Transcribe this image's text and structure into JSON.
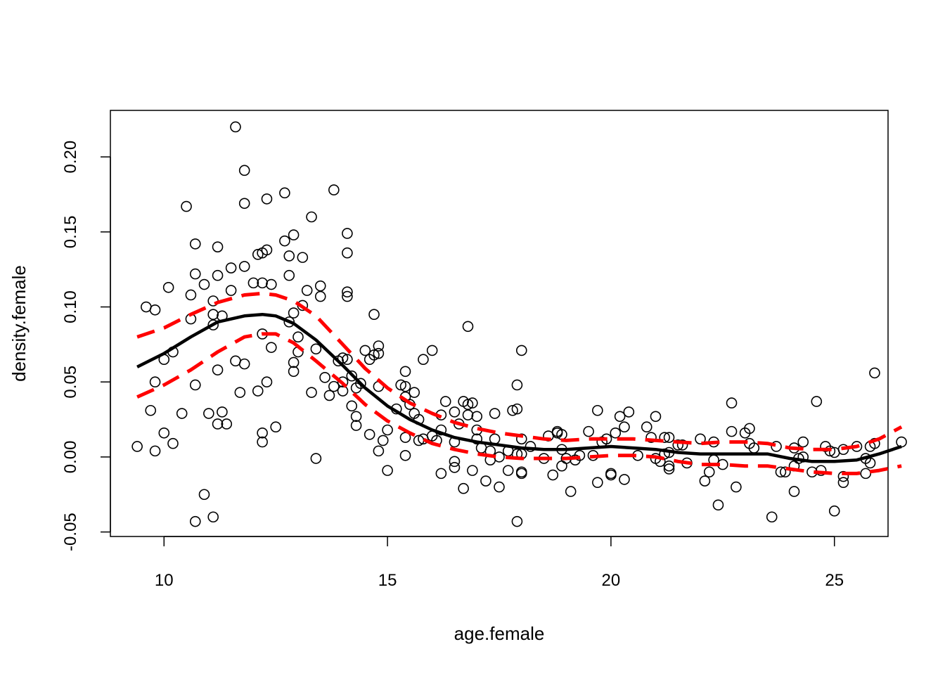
{
  "chart_data": {
    "type": "scatter",
    "xlabel": "age.female",
    "ylabel": "density.female",
    "xlim": [
      8.8,
      26.2
    ],
    "ylim": [
      -0.053,
      0.231
    ],
    "x_ticks": [
      10,
      15,
      20,
      25
    ],
    "x_tick_labels": [
      "10",
      "15",
      "20",
      "25"
    ],
    "y_ticks": [
      -0.05,
      0.0,
      0.05,
      0.1,
      0.15,
      0.2
    ],
    "y_tick_labels": [
      "-0.05",
      "0.00",
      "0.05",
      "0.10",
      "0.15",
      "0.20"
    ],
    "grid": false,
    "legend": "none",
    "colors": {
      "points": "#000000",
      "fit": "#000000",
      "band": "#ff0000"
    },
    "points": [
      [
        9.4,
        0.007
      ],
      [
        9.6,
        0.1
      ],
      [
        9.7,
        0.031
      ],
      [
        9.8,
        0.098
      ],
      [
        9.8,
        0.004
      ],
      [
        9.8,
        0.05
      ],
      [
        10.0,
        0.016
      ],
      [
        10.0,
        0.065
      ],
      [
        10.1,
        0.113
      ],
      [
        10.2,
        0.009
      ],
      [
        10.2,
        0.07
      ],
      [
        10.4,
        0.029
      ],
      [
        10.5,
        0.167
      ],
      [
        10.6,
        0.108
      ],
      [
        10.6,
        0.092
      ],
      [
        10.7,
        0.122
      ],
      [
        10.7,
        0.142
      ],
      [
        10.7,
        0.048
      ],
      [
        10.7,
        -0.043
      ],
      [
        10.9,
        -0.025
      ],
      [
        10.9,
        0.115
      ],
      [
        11.0,
        0.029
      ],
      [
        11.1,
        0.104
      ],
      [
        11.1,
        -0.04
      ],
      [
        11.1,
        0.095
      ],
      [
        11.1,
        0.088
      ],
      [
        11.2,
        0.121
      ],
      [
        11.2,
        0.022
      ],
      [
        11.2,
        0.058
      ],
      [
        11.2,
        0.14
      ],
      [
        11.3,
        0.03
      ],
      [
        11.3,
        0.094
      ],
      [
        11.4,
        0.022
      ],
      [
        11.5,
        0.126
      ],
      [
        11.5,
        0.111
      ],
      [
        11.6,
        0.22
      ],
      [
        11.6,
        0.064
      ],
      [
        11.7,
        0.043
      ],
      [
        11.8,
        0.191
      ],
      [
        11.8,
        0.169
      ],
      [
        11.8,
        0.127
      ],
      [
        11.8,
        0.062
      ],
      [
        12.0,
        0.116
      ],
      [
        12.1,
        0.135
      ],
      [
        12.1,
        0.044
      ],
      [
        12.2,
        0.01
      ],
      [
        12.2,
        0.016
      ],
      [
        12.2,
        0.116
      ],
      [
        12.2,
        0.136
      ],
      [
        12.2,
        0.082
      ],
      [
        12.3,
        0.138
      ],
      [
        12.3,
        0.05
      ],
      [
        12.3,
        0.172
      ],
      [
        12.4,
        0.115
      ],
      [
        12.4,
        0.073
      ],
      [
        12.5,
        0.02
      ],
      [
        12.7,
        0.144
      ],
      [
        12.7,
        0.176
      ],
      [
        12.8,
        0.121
      ],
      [
        12.8,
        0.134
      ],
      [
        12.8,
        0.09
      ],
      [
        12.9,
        0.148
      ],
      [
        12.9,
        0.096
      ],
      [
        12.9,
        0.057
      ],
      [
        12.9,
        0.063
      ],
      [
        13.0,
        0.07
      ],
      [
        13.0,
        0.08
      ],
      [
        13.1,
        0.133
      ],
      [
        13.1,
        0.101
      ],
      [
        13.2,
        0.111
      ],
      [
        13.3,
        0.16
      ],
      [
        13.3,
        0.043
      ],
      [
        13.4,
        0.072
      ],
      [
        13.4,
        -0.001
      ],
      [
        13.5,
        0.107
      ],
      [
        13.5,
        0.114
      ],
      [
        13.6,
        0.053
      ],
      [
        13.7,
        0.041
      ],
      [
        13.8,
        0.178
      ],
      [
        13.8,
        0.047
      ],
      [
        13.9,
        0.064
      ],
      [
        14.0,
        0.066
      ],
      [
        14.0,
        0.05
      ],
      [
        14.0,
        0.044
      ],
      [
        14.1,
        0.136
      ],
      [
        14.1,
        0.107
      ],
      [
        14.1,
        0.065
      ],
      [
        14.1,
        0.11
      ],
      [
        14.1,
        0.149
      ],
      [
        14.2,
        0.054
      ],
      [
        14.2,
        0.034
      ],
      [
        14.3,
        0.021
      ],
      [
        14.3,
        0.027
      ],
      [
        14.3,
        0.046
      ],
      [
        14.4,
        0.049
      ],
      [
        14.5,
        0.071
      ],
      [
        14.6,
        0.015
      ],
      [
        14.6,
        0.065
      ],
      [
        14.7,
        0.095
      ],
      [
        14.7,
        0.068
      ],
      [
        14.8,
        0.069
      ],
      [
        14.8,
        0.074
      ],
      [
        14.8,
        0.047
      ],
      [
        14.8,
        0.004
      ],
      [
        14.9,
        0.011
      ],
      [
        15.0,
        0.018
      ],
      [
        15.0,
        -0.009
      ],
      [
        15.2,
        0.032
      ],
      [
        15.3,
        0.048
      ],
      [
        15.4,
        0.057
      ],
      [
        15.4,
        0.047
      ],
      [
        15.4,
        0.04
      ],
      [
        15.4,
        0.001
      ],
      [
        15.4,
        0.013
      ],
      [
        15.5,
        0.035
      ],
      [
        15.6,
        0.029
      ],
      [
        15.6,
        0.043
      ],
      [
        15.7,
        0.025
      ],
      [
        15.7,
        0.011
      ],
      [
        15.8,
        0.065
      ],
      [
        15.8,
        0.012
      ],
      [
        16.0,
        0.014
      ],
      [
        16.0,
        0.071
      ],
      [
        16.1,
        0.011
      ],
      [
        16.2,
        -0.011
      ],
      [
        16.2,
        0.028
      ],
      [
        16.2,
        0.018
      ],
      [
        16.3,
        0.037
      ],
      [
        16.5,
        -0.007
      ],
      [
        16.5,
        -0.003
      ],
      [
        16.5,
        0.03
      ],
      [
        16.5,
        0.01
      ],
      [
        16.6,
        0.022
      ],
      [
        16.7,
        0.037
      ],
      [
        16.7,
        -0.021
      ],
      [
        16.8,
        0.028
      ],
      [
        16.8,
        0.035
      ],
      [
        16.8,
        0.087
      ],
      [
        16.9,
        -0.009
      ],
      [
        16.9,
        0.036
      ],
      [
        17.0,
        0.018
      ],
      [
        17.0,
        0.012
      ],
      [
        17.0,
        0.027
      ],
      [
        17.1,
        0.006
      ],
      [
        17.2,
        -0.016
      ],
      [
        17.3,
        0.004
      ],
      [
        17.3,
        -0.002
      ],
      [
        17.4,
        0.029
      ],
      [
        17.4,
        0.012
      ],
      [
        17.5,
        0.0
      ],
      [
        17.5,
        -0.02
      ],
      [
        17.7,
        0.004
      ],
      [
        17.7,
        -0.009
      ],
      [
        17.8,
        0.031
      ],
      [
        17.9,
        0.048
      ],
      [
        17.9,
        -0.043
      ],
      [
        17.9,
        0.032
      ],
      [
        17.9,
        0.002
      ],
      [
        18.0,
        0.012
      ],
      [
        18.0,
        0.071
      ],
      [
        18.0,
        0.002
      ],
      [
        18.0,
        -0.01
      ],
      [
        18.0,
        -0.011
      ],
      [
        18.2,
        0.007
      ],
      [
        18.5,
        -0.001
      ],
      [
        18.6,
        0.014
      ],
      [
        18.7,
        -0.012
      ],
      [
        18.8,
        0.017
      ],
      [
        18.8,
        0.016
      ],
      [
        18.9,
        0.005
      ],
      [
        18.9,
        0.015
      ],
      [
        18.9,
        -0.006
      ],
      [
        19.0,
        -0.001
      ],
      [
        19.1,
        -0.023
      ],
      [
        19.2,
        -0.002
      ],
      [
        19.3,
        0.001
      ],
      [
        19.5,
        0.017
      ],
      [
        19.6,
        0.001
      ],
      [
        19.7,
        0.031
      ],
      [
        19.7,
        -0.017
      ],
      [
        19.8,
        0.01
      ],
      [
        19.9,
        0.012
      ],
      [
        20.0,
        -0.012
      ],
      [
        20.0,
        -0.011
      ],
      [
        20.1,
        0.016
      ],
      [
        20.2,
        0.027
      ],
      [
        20.3,
        0.02
      ],
      [
        20.3,
        -0.015
      ],
      [
        20.4,
        0.03
      ],
      [
        20.6,
        0.001
      ],
      [
        20.8,
        0.02
      ],
      [
        20.9,
        0.013
      ],
      [
        21.0,
        -0.001
      ],
      [
        21.0,
        0.027
      ],
      [
        21.1,
        -0.003
      ],
      [
        21.2,
        0.013
      ],
      [
        21.2,
        0.002
      ],
      [
        21.3,
        -0.006
      ],
      [
        21.3,
        0.013
      ],
      [
        21.3,
        0.003
      ],
      [
        21.3,
        -0.008
      ],
      [
        21.5,
        0.008
      ],
      [
        21.6,
        0.008
      ],
      [
        21.7,
        -0.004
      ],
      [
        22.0,
        0.012
      ],
      [
        22.1,
        -0.016
      ],
      [
        22.2,
        -0.01
      ],
      [
        22.3,
        0.01
      ],
      [
        22.3,
        -0.002
      ],
      [
        22.4,
        -0.032
      ],
      [
        22.5,
        -0.005
      ],
      [
        22.7,
        0.036
      ],
      [
        22.7,
        0.017
      ],
      [
        22.8,
        -0.02
      ],
      [
        23.0,
        0.016
      ],
      [
        23.1,
        0.019
      ],
      [
        23.1,
        0.009
      ],
      [
        23.2,
        0.006
      ],
      [
        23.6,
        -0.04
      ],
      [
        23.7,
        0.007
      ],
      [
        23.8,
        -0.01
      ],
      [
        23.9,
        -0.01
      ],
      [
        24.1,
        -0.023
      ],
      [
        24.1,
        -0.006
      ],
      [
        24.1,
        0.006
      ],
      [
        24.2,
        -0.001
      ],
      [
        24.3,
        0.0
      ],
      [
        24.3,
        0.01
      ],
      [
        24.5,
        -0.01
      ],
      [
        24.6,
        0.037
      ],
      [
        24.7,
        -0.009
      ],
      [
        24.8,
        0.007
      ],
      [
        24.9,
        0.004
      ],
      [
        25.0,
        0.003
      ],
      [
        25.0,
        -0.036
      ],
      [
        25.2,
        0.005
      ],
      [
        25.2,
        -0.013
      ],
      [
        25.2,
        -0.017
      ],
      [
        25.5,
        0.007
      ],
      [
        25.7,
        -0.011
      ],
      [
        25.7,
        -0.001
      ],
      [
        25.8,
        0.007
      ],
      [
        25.8,
        -0.004
      ],
      [
        25.9,
        0.056
      ],
      [
        25.9,
        0.009
      ],
      [
        26.5,
        0.01
      ]
    ],
    "series": [
      {
        "style": "solid",
        "x": [
          9.4,
          10.0,
          10.6,
          11.2,
          11.8,
          12.2,
          12.5,
          12.9,
          13.4,
          14.0,
          14.5,
          15.0,
          15.5,
          16.0,
          16.5,
          17.0,
          17.5,
          18.0,
          18.5,
          19.0,
          19.5,
          20.0,
          20.5,
          21.0,
          21.5,
          22.0,
          22.5,
          23.0,
          23.5,
          24.0,
          24.5,
          25.0,
          25.5,
          26.0,
          26.5
        ],
        "y": [
          0.06,
          0.069,
          0.08,
          0.09,
          0.094,
          0.095,
          0.094,
          0.089,
          0.078,
          0.061,
          0.046,
          0.034,
          0.025,
          0.018,
          0.013,
          0.01,
          0.008,
          0.006,
          0.005,
          0.005,
          0.006,
          0.007,
          0.006,
          0.005,
          0.003,
          0.002,
          0.002,
          0.002,
          0.002,
          -0.001,
          -0.003,
          -0.003,
          -0.002,
          0.002,
          0.007
        ]
      },
      {
        "style": "dashed",
        "x": [
          9.4,
          10.0,
          10.6,
          11.2,
          11.8,
          12.2,
          12.5,
          12.9,
          13.4,
          14.0,
          14.5,
          15.0,
          15.5,
          16.0,
          16.5,
          17.0,
          17.5,
          18.0,
          18.5,
          19.0,
          19.5,
          20.0,
          20.5,
          21.0,
          21.5,
          22.0,
          22.5,
          23.0,
          23.5,
          24.0,
          24.5,
          25.0,
          25.5,
          26.0,
          26.5
        ],
        "y": [
          0.08,
          0.086,
          0.095,
          0.103,
          0.108,
          0.109,
          0.108,
          0.104,
          0.094,
          0.075,
          0.059,
          0.046,
          0.036,
          0.029,
          0.023,
          0.019,
          0.016,
          0.014,
          0.012,
          0.011,
          0.012,
          0.012,
          0.012,
          0.011,
          0.01,
          0.009,
          0.01,
          0.01,
          0.009,
          0.006,
          0.005,
          0.005,
          0.007,
          0.012,
          0.02
        ]
      },
      {
        "style": "dashed",
        "x": [
          9.4,
          10.0,
          10.6,
          11.2,
          11.8,
          12.2,
          12.5,
          12.9,
          13.4,
          14.0,
          14.5,
          15.0,
          15.5,
          16.0,
          16.5,
          17.0,
          17.5,
          18.0,
          18.5,
          19.0,
          19.5,
          20.0,
          20.5,
          21.0,
          21.5,
          22.0,
          22.5,
          23.0,
          23.5,
          24.0,
          24.5,
          25.0,
          25.5,
          26.0,
          26.5
        ],
        "y": [
          0.04,
          0.048,
          0.058,
          0.07,
          0.08,
          0.082,
          0.082,
          0.076,
          0.064,
          0.049,
          0.035,
          0.024,
          0.016,
          0.009,
          0.005,
          0.002,
          0.0,
          -0.001,
          -0.001,
          -0.001,
          0.0,
          0.001,
          0.001,
          0.0,
          -0.003,
          -0.005,
          -0.005,
          -0.006,
          -0.006,
          -0.008,
          -0.01,
          -0.011,
          -0.011,
          -0.009,
          -0.006
        ]
      }
    ]
  }
}
